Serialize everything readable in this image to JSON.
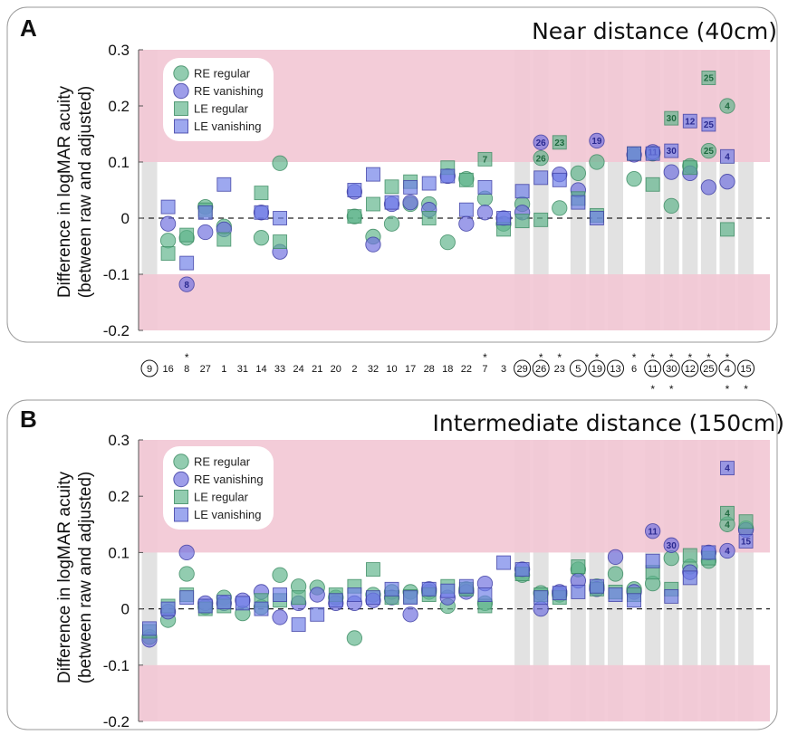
{
  "colors": {
    "re_regular": "#5fb48a",
    "re_vanishing": "#6f6fdf",
    "le_regular": "#5fb48a",
    "le_vanishing": "#6f7fe8",
    "band": "#f2c8d5",
    "highlight_column": "#e2e2e2"
  },
  "participants": [
    {
      "id": "9",
      "circled": true,
      "star_top": false,
      "star_bottom": false
    },
    {
      "id": "16",
      "circled": false,
      "star_top": false,
      "star_bottom": false
    },
    {
      "id": "8",
      "circled": false,
      "star_top": true,
      "star_bottom": false
    },
    {
      "id": "27",
      "circled": false,
      "star_top": false,
      "star_bottom": false
    },
    {
      "id": "1",
      "circled": false,
      "star_top": false,
      "star_bottom": false
    },
    {
      "id": "31",
      "circled": false,
      "star_top": false,
      "star_bottom": false
    },
    {
      "id": "14",
      "circled": false,
      "star_top": false,
      "star_bottom": false
    },
    {
      "id": "33",
      "circled": false,
      "star_top": false,
      "star_bottom": false
    },
    {
      "id": "24",
      "circled": false,
      "star_top": false,
      "star_bottom": false
    },
    {
      "id": "21",
      "circled": false,
      "star_top": false,
      "star_bottom": false
    },
    {
      "id": "20",
      "circled": false,
      "star_top": false,
      "star_bottom": false
    },
    {
      "id": "2",
      "circled": false,
      "star_top": false,
      "star_bottom": false
    },
    {
      "id": "32",
      "circled": false,
      "star_top": false,
      "star_bottom": false
    },
    {
      "id": "10",
      "circled": false,
      "star_top": false,
      "star_bottom": false
    },
    {
      "id": "17",
      "circled": false,
      "star_top": false,
      "star_bottom": false
    },
    {
      "id": "28",
      "circled": false,
      "star_top": false,
      "star_bottom": false
    },
    {
      "id": "18",
      "circled": false,
      "star_top": false,
      "star_bottom": false
    },
    {
      "id": "22",
      "circled": false,
      "star_top": false,
      "star_bottom": false
    },
    {
      "id": "7",
      "circled": false,
      "star_top": true,
      "star_bottom": false
    },
    {
      "id": "3",
      "circled": false,
      "star_top": false,
      "star_bottom": false
    },
    {
      "id": "29",
      "circled": true,
      "star_top": false,
      "star_bottom": false
    },
    {
      "id": "26",
      "circled": true,
      "star_top": true,
      "star_bottom": false
    },
    {
      "id": "23",
      "circled": false,
      "star_top": true,
      "star_bottom": false
    },
    {
      "id": "5",
      "circled": true,
      "star_top": false,
      "star_bottom": false
    },
    {
      "id": "19",
      "circled": true,
      "star_top": true,
      "star_bottom": false
    },
    {
      "id": "13",
      "circled": true,
      "star_top": false,
      "star_bottom": false
    },
    {
      "id": "6",
      "circled": false,
      "star_top": true,
      "star_bottom": false
    },
    {
      "id": "11",
      "circled": true,
      "star_top": true,
      "star_bottom": true
    },
    {
      "id": "30",
      "circled": true,
      "star_top": true,
      "star_bottom": true
    },
    {
      "id": "12",
      "circled": true,
      "star_top": true,
      "star_bottom": false
    },
    {
      "id": "25",
      "circled": true,
      "star_top": true,
      "star_bottom": false
    },
    {
      "id": "4",
      "circled": true,
      "star_top": true,
      "star_bottom": true
    },
    {
      "id": "15",
      "circled": true,
      "star_top": false,
      "star_bottom": true
    }
  ],
  "chart_data": [
    {
      "panel": "A",
      "type": "scatter",
      "title": "Near distance (40cm)",
      "ylabel": "Difference in logMAR acuity (between raw and adjusted)",
      "ylim": [
        -0.2,
        0.3
      ],
      "yticks": [
        "0.3",
        "0.2",
        "0.1",
        "0",
        "-0.1",
        "-0.2"
      ],
      "ytick_values": [
        0.3,
        0.2,
        0.1,
        0,
        -0.1,
        -0.2
      ],
      "reference_line": 0,
      "shaded_bands": [
        [
          0.1,
          0.3
        ],
        [
          -0.2,
          -0.1
        ]
      ],
      "legend_position": "top-left",
      "series": [
        {
          "name": "RE regular",
          "marker": "circle",
          "values": [
            null,
            -0.04,
            -0.035,
            0.02,
            -0.015,
            null,
            -0.035,
            0.098,
            null,
            null,
            null,
            0.003,
            -0.033,
            -0.01,
            0.025,
            0.025,
            -0.043,
            0.07,
            0.035,
            -0.01,
            0.025,
            0.107,
            0.018,
            0.08,
            0.1,
            null,
            0.07,
            0.115,
            0.022,
            0.093,
            0.12,
            0.2,
            null
          ],
          "labels": {
            "26": "26",
            "25": "25",
            "4": "4"
          }
        },
        {
          "name": "RE vanishing",
          "marker": "circle",
          "values": [
            null,
            -0.01,
            -0.118,
            -0.025,
            -0.02,
            null,
            0.01,
            -0.06,
            null,
            null,
            null,
            0.047,
            -0.047,
            0.025,
            0.028,
            0.015,
            0.075,
            -0.01,
            0.01,
            0.0,
            0.01,
            0.135,
            0.078,
            0.05,
            0.138,
            null,
            0.113,
            0.118,
            0.082,
            0.08,
            0.055,
            0.065,
            null
          ],
          "labels": {
            "8": "8",
            "26": "26",
            "19": "19",
            "11": "11"
          }
        },
        {
          "name": "LE regular",
          "marker": "square",
          "values": [
            null,
            -0.063,
            -0.03,
            0.015,
            -0.038,
            null,
            0.045,
            -0.042,
            null,
            null,
            null,
            0.003,
            0.025,
            0.056,
            0.065,
            0.0,
            0.09,
            0.068,
            0.105,
            -0.02,
            -0.005,
            -0.003,
            0.135,
            0.035,
            0.005,
            null,
            0.115,
            0.06,
            0.178,
            0.09,
            0.25,
            -0.02,
            null
          ],
          "labels": {
            "7": "7",
            "23": "23",
            "30": "30",
            "25": "25"
          }
        },
        {
          "name": "LE vanishing",
          "marker": "square",
          "values": [
            null,
            0.02,
            -0.08,
            0.01,
            0.06,
            null,
            0.01,
            0.0,
            null,
            null,
            null,
            0.05,
            0.078,
            0.028,
            0.055,
            0.062,
            0.075,
            0.015,
            0.055,
            0.0,
            0.048,
            0.072,
            0.068,
            0.028,
            0.0,
            null,
            0.115,
            0.115,
            0.12,
            0.173,
            0.167,
            0.11,
            null
          ],
          "labels": {
            "30": "30",
            "12": "12",
            "25": "25",
            "4": "4"
          }
        }
      ]
    },
    {
      "panel": "B",
      "type": "scatter",
      "title": "Intermediate distance (150cm)",
      "ylabel": "Difference in logMAR acuity (between raw and adjusted)",
      "ylim": [
        -0.2,
        0.3
      ],
      "yticks": [
        "0.3",
        "0.2",
        "0.1",
        "0",
        "-0.1",
        "-0.2"
      ],
      "ytick_values": [
        0.3,
        0.2,
        0.1,
        0,
        -0.1,
        -0.2
      ],
      "reference_line": 0,
      "shaded_bands": [
        [
          0.1,
          0.3
        ],
        [
          -0.2,
          -0.1
        ]
      ],
      "legend_position": "top-left",
      "series": [
        {
          "name": "RE regular",
          "marker": "circle",
          "values": [
            -0.05,
            -0.02,
            0.062,
            0.003,
            0.02,
            -0.008,
            0.003,
            0.06,
            0.04,
            0.038,
            0.02,
            -0.052,
            0.025,
            0.03,
            0.03,
            0.03,
            0.005,
            0.035,
            0.01,
            null,
            0.06,
            0.028,
            0.025,
            0.07,
            0.04,
            0.062,
            0.035,
            0.045,
            0.09,
            0.075,
            0.085,
            0.15,
            0.143
          ],
          "labels": {
            "4": "4"
          }
        },
        {
          "name": "RE vanishing",
          "marker": "circle",
          "values": [
            -0.055,
            -0.005,
            0.1,
            0.01,
            0.01,
            0.015,
            0.03,
            -0.015,
            0.01,
            0.025,
            0.01,
            0.01,
            0.015,
            0.02,
            -0.01,
            0.035,
            0.02,
            0.03,
            0.045,
            null,
            0.07,
            0.0,
            0.03,
            0.05,
            0.035,
            0.092,
            0.03,
            0.138,
            0.113,
            0.065,
            0.1,
            0.103,
            0.14
          ],
          "labels": {
            "11": "11",
            "30": "30",
            "4": "4"
          }
        },
        {
          "name": "LE regular",
          "marker": "square",
          "values": [
            -0.04,
            0.005,
            0.025,
            0.0,
            0.005,
            null,
            0.015,
            0.015,
            0.02,
            null,
            0.025,
            0.04,
            0.07,
            0.02,
            0.022,
            0.025,
            0.04,
            0.035,
            0.005,
            null,
            0.062,
            0.025,
            0.02,
            0.075,
            0.035,
            0.03,
            0.025,
            0.065,
            0.035,
            0.095,
            0.09,
            0.17,
            0.155
          ],
          "labels": {
            "4": "4"
          }
        },
        {
          "name": "LE vanishing",
          "marker": "square",
          "values": [
            -0.035,
            0.0,
            0.02,
            0.005,
            0.012,
            0.01,
            0.0,
            0.025,
            -0.028,
            -0.01,
            0.015,
            0.025,
            0.02,
            0.035,
            0.02,
            0.035,
            0.032,
            0.04,
            0.025,
            0.082,
            0.07,
            0.02,
            0.028,
            0.03,
            0.04,
            0.025,
            0.015,
            0.085,
            0.022,
            0.055,
            0.1,
            0.25,
            0.12
          ],
          "labels": {
            "4": "4",
            "15": "15"
          }
        }
      ]
    }
  ]
}
